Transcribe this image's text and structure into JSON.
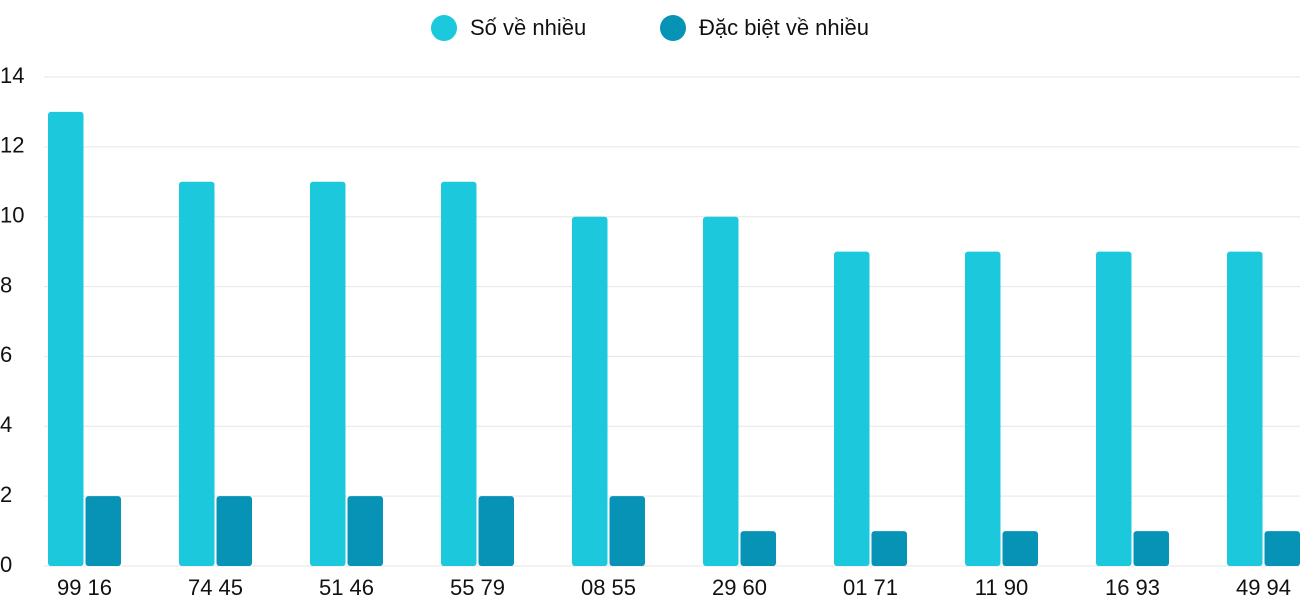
{
  "chart_data": {
    "type": "bar",
    "categories": [
      "99 16",
      "74 45",
      "51 46",
      "55 79",
      "08 55",
      "29 60",
      "01 71",
      "11 90",
      "16 93",
      "49 94"
    ],
    "series": [
      {
        "name": "Số về nhiều",
        "color": "#1bc8dc",
        "values": [
          13,
          11,
          11,
          11,
          10,
          10,
          9,
          9,
          9,
          9
        ]
      },
      {
        "name": "Đặc biệt về nhiều",
        "color": "#0793b6",
        "values": [
          2,
          2,
          2,
          2,
          2,
          1,
          1,
          1,
          1,
          1
        ]
      }
    ],
    "ylim": [
      0,
      14
    ],
    "yticks": [
      0,
      2,
      4,
      6,
      8,
      10,
      12,
      14
    ],
    "grid": true,
    "legend": "top"
  }
}
